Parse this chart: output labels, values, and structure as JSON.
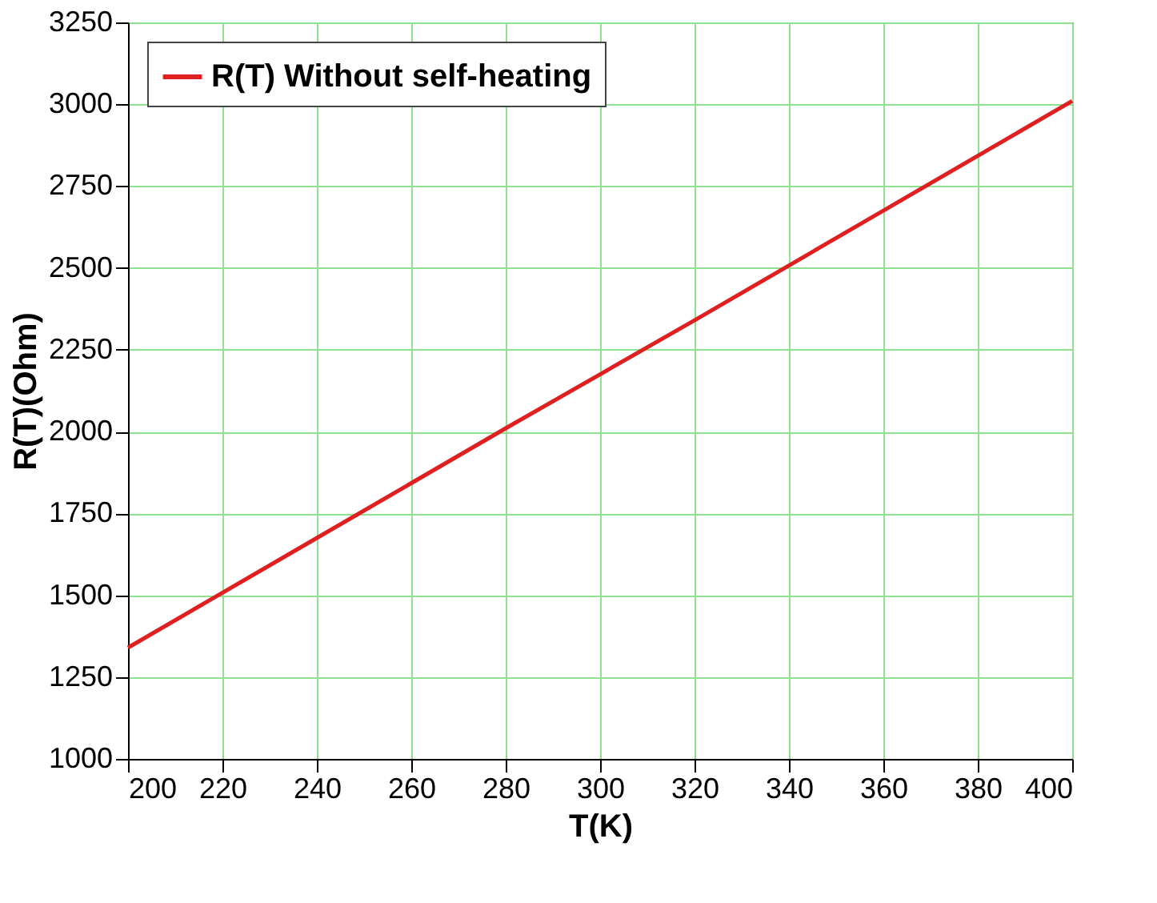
{
  "chart_data": {
    "type": "line",
    "xlabel": "T(K)",
    "ylabel": "R(T)(Ohm)",
    "x": [
      200,
      240,
      280,
      320,
      360,
      400
    ],
    "series": [
      {
        "name": "R(T) Without self-heating",
        "color": "#e02020",
        "values": [
          1340,
          1675,
          2010,
          2340,
          2675,
          3010
        ]
      }
    ],
    "xlim": [
      200,
      400
    ],
    "xticks": [
      200,
      220,
      240,
      260,
      280,
      300,
      320,
      340,
      360,
      380,
      400
    ],
    "ylim": [
      1000,
      3250
    ],
    "yticks": [
      1000,
      1250,
      1500,
      1750,
      2000,
      2250,
      2500,
      2750,
      3000,
      3250
    ],
    "grid": true,
    "legend": "top left",
    "marker": "none",
    "line_style": "solid"
  }
}
